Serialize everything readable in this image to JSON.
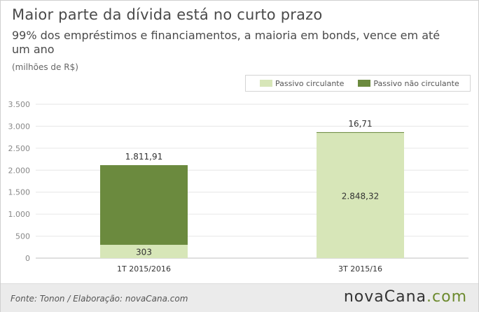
{
  "header": {
    "title": "Maior parte da dívida está no curto prazo",
    "subtitle": "99% dos empréstimos e financiamentos, a maioria em bonds, vence em até um ano",
    "unit": "(milhões de R$)"
  },
  "footer": {
    "source": "Fonte: Tonon / Elaboração: novaCana.com",
    "logo_main": "novaCana",
    "logo_suffix": ".com"
  },
  "colors": {
    "circulante": "#d7e6b8",
    "nao_circulante": "#6b8a3e",
    "grid": "#e6e6e6",
    "axis_text": "#888888"
  },
  "chart_data": {
    "type": "bar",
    "stacked": true,
    "categories": [
      "1T 2015/2016",
      "3T 2015/16"
    ],
    "series": [
      {
        "name": "Passivo circulante",
        "values": [
          303,
          2848.32
        ],
        "labels": [
          "303",
          "2.848,32"
        ]
      },
      {
        "name": "Passivo não circulante",
        "values": [
          1811.91,
          16.71
        ],
        "labels": [
          "1.811,91",
          "16,71"
        ]
      }
    ],
    "yticks": [
      0,
      500,
      1000,
      1500,
      2000,
      2500,
      3000,
      3500
    ],
    "ytick_labels": [
      "0",
      "500",
      "1.000",
      "1.500",
      "2.000",
      "2.500",
      "3.000",
      "3.500"
    ],
    "ylim": [
      0,
      3500
    ],
    "grid": true,
    "legend": "top-right"
  }
}
